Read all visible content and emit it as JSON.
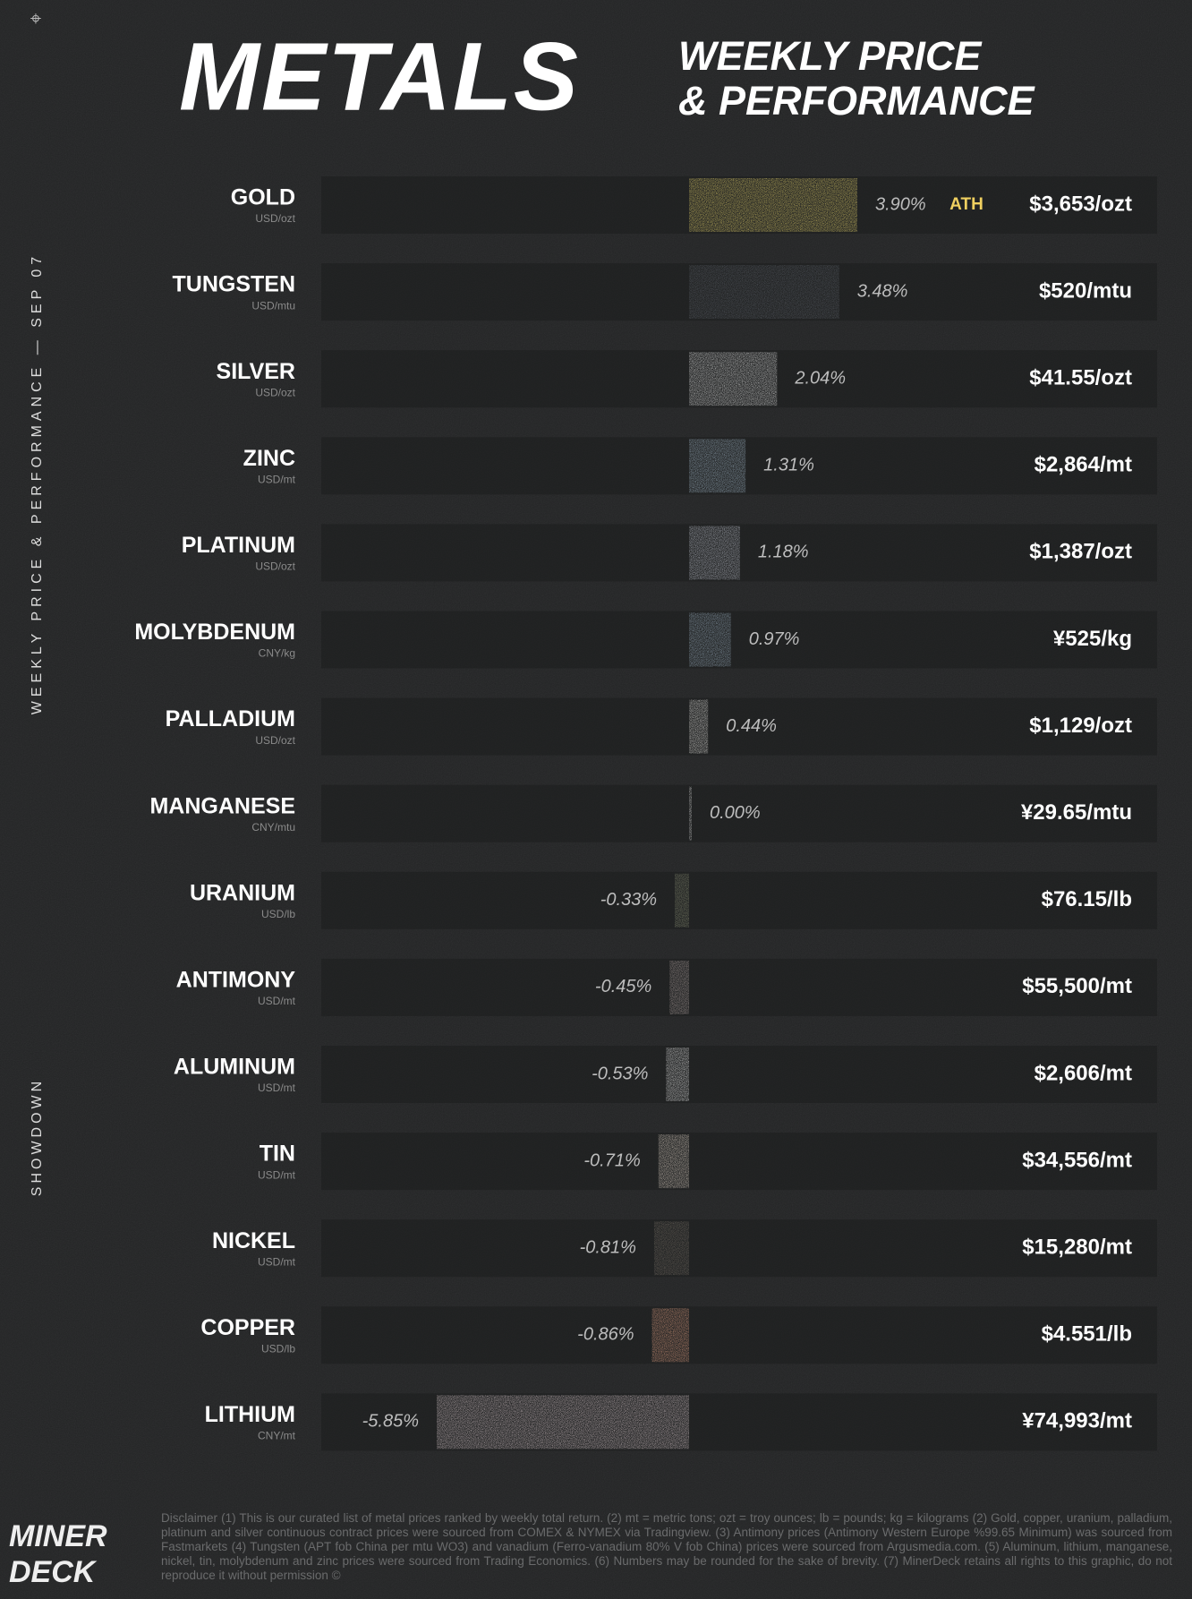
{
  "chart_data": {
    "type": "bar",
    "orientation": "horizontal",
    "title": "METALS",
    "subtitle_lines": [
      "WEEKLY PRICE",
      "& PERFORMANCE"
    ],
    "side_text": "WEEKLY PRICE & PERFORMANCE — SEP 07",
    "side_label": "SHOWDOWN",
    "logo_lines": [
      "MINER",
      "DECK"
    ],
    "categories": [
      "GOLD",
      "TUNGSTEN",
      "SILVER",
      "ZINC",
      "PLATINUM",
      "MOLYBDENUM",
      "PALLADIUM",
      "MANGANESE",
      "URANIUM",
      "ANTIMONY",
      "ALUMINUM",
      "TIN",
      "NICKEL",
      "COPPER",
      "LITHIUM"
    ],
    "units": [
      "USD/ozt",
      "USD/mtu",
      "USD/ozt",
      "USD/mt",
      "USD/ozt",
      "CNY/kg",
      "USD/ozt",
      "CNY/mtu",
      "USD/lb",
      "USD/mt",
      "USD/mt",
      "USD/mt",
      "USD/mt",
      "USD/lb",
      "CNY/mt"
    ],
    "values": [
      3.9,
      3.48,
      2.04,
      1.31,
      1.18,
      0.97,
      0.44,
      0,
      -0.33,
      -0.45,
      -0.53,
      -0.71,
      -0.81,
      -0.86,
      -5.85
    ],
    "value_labels": [
      "3.90%",
      "3.48%",
      "2.04%",
      "1.31%",
      "1.18%",
      "0.97%",
      "0.44%",
      "0.00%",
      "-0.33%",
      "-0.45%",
      "-0.53%",
      "-0.71%",
      "-0.81%",
      "-0.86%",
      "-5.85%"
    ],
    "prices": [
      "$3,653/ozt",
      "$520/mtu",
      "$41.55/ozt",
      "$2,864/mt",
      "$1,387/ozt",
      "¥525/kg",
      "$1,129/ozt",
      "¥29.65/mtu",
      "$76.15/lb",
      "$55,500/mt",
      "$2,606/mt",
      "$34,556/mt",
      "$15,280/mt",
      "$4.551/lb",
      "¥74,993/mt"
    ],
    "colors": [
      "#f0dc6e",
      "#5c6169",
      "#eeeeee",
      "#a8bfd1",
      "#c8ccd8",
      "#9fb4c6",
      "#f0eeea",
      "#dddddd",
      "#8d9276",
      "#b9aaa8",
      "#f5f5f5",
      "#f0e2d4",
      "#7a7268",
      "#f0a888",
      "#e6d4d8"
    ],
    "annotation": {
      "text": "ATH",
      "category": "GOLD",
      "color": "#f0d060"
    },
    "disclaimer": "Disclaimer (1) This is our curated list of metal prices ranked by weekly total return. (2) mt = metric tons; ozt = troy ounces; lb = pounds; kg = kilograms (2) Gold, copper, uranium, palladium, platinum and silver continuous contract prices were sourced from COMEX & NYMEX via Tradingview. (3) Antimony prices (Antimony Western Europe %99.65 Minimum) was sourced from Fastmarkets (4) Tungsten (APT fob China per mtu WO3) and vanadium (Ferro-vanadium 80% V fob China) prices were sourced from Argusmedia.com. (5) Aluminum, lithium, manganese, nickel, tin, molybdenum and zinc prices were sourced from Trading Economics. (6) Numbers may be rounded for the sake of brevity. (7) MinerDeck retains all rights to this graphic, do not reproduce it without permission ©"
  }
}
